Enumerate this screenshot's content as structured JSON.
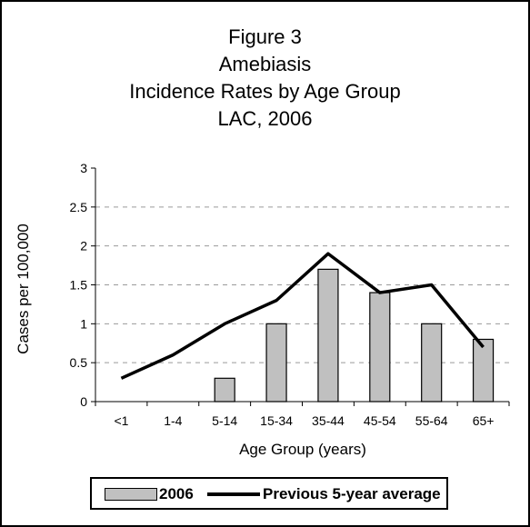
{
  "chart_data": {
    "type": "bar",
    "title_lines": [
      "Figure 3",
      "Amebiasis",
      "Incidence Rates by Age Group",
      "LAC, 2006"
    ],
    "xlabel": "Age Group (years)",
    "ylabel": "Cases per 100,000",
    "categories": [
      "<1",
      "1-4",
      "5-14",
      "15-34",
      "35-44",
      "45-54",
      "55-64",
      "65+"
    ],
    "ylim": [
      0,
      3
    ],
    "yticks": [
      "0",
      "0.5",
      "1",
      "1.5",
      "2",
      "2.5",
      "3"
    ],
    "grid": true,
    "legend_position": "bottom",
    "series": [
      {
        "name": "2006",
        "type": "bar",
        "color": "#c0c0c0",
        "values": [
          null,
          null,
          0.3,
          1.0,
          1.7,
          1.4,
          1.0,
          0.8
        ]
      },
      {
        "name": "Previous 5-year average",
        "type": "line",
        "color": "#000000",
        "values": [
          0.3,
          0.6,
          1.0,
          1.3,
          1.9,
          1.4,
          1.5,
          0.7
        ]
      }
    ]
  }
}
